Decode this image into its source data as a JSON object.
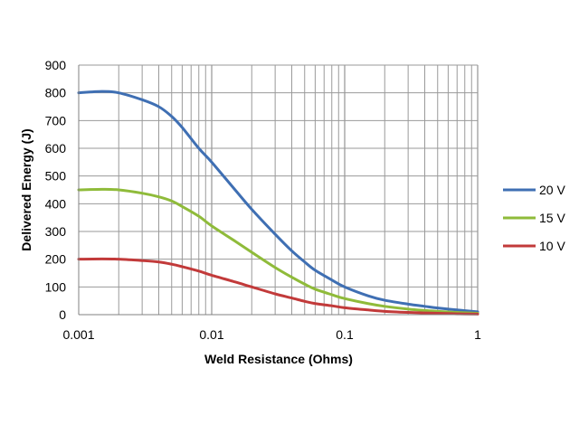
{
  "chart_data": {
    "type": "line",
    "x_scale": "log",
    "xlabel": "Weld Resistance (Ohms)",
    "ylabel": "Delivered Energy (J)",
    "xlim": [
      0.001,
      1
    ],
    "ylim": [
      0,
      900
    ],
    "x_ticks": [
      "0.001",
      "0.01",
      "0.1",
      "1"
    ],
    "x_tick_values": [
      0.001,
      0.01,
      0.1,
      1
    ],
    "y_ticks": [
      "0",
      "100",
      "200",
      "300",
      "400",
      "500",
      "600",
      "700",
      "800",
      "900"
    ],
    "y_tick_values": [
      0,
      100,
      200,
      300,
      400,
      500,
      600,
      700,
      800,
      900
    ],
    "grid": true,
    "legend_position": "right",
    "x": [
      0.001,
      0.0015,
      0.002,
      0.003,
      0.004,
      0.005,
      0.006,
      0.008,
      0.01,
      0.015,
      0.02,
      0.03,
      0.04,
      0.05,
      0.06,
      0.08,
      0.1,
      0.15,
      0.2,
      0.3,
      0.4,
      0.5,
      0.7,
      1
    ],
    "series": [
      {
        "name": "20 V",
        "color": "#3f6fb3",
        "values": [
          800,
          805,
          800,
          775,
          750,
          715,
          675,
          600,
          550,
          450,
          380,
          290,
          230,
          190,
          160,
          125,
          100,
          68,
          52,
          38,
          30,
          24,
          17,
          10
        ]
      },
      {
        "name": "15 V",
        "color": "#8fbb3a",
        "values": [
          450,
          452,
          450,
          438,
          425,
          410,
          390,
          355,
          320,
          265,
          225,
          170,
          135,
          110,
          92,
          72,
          58,
          40,
          30,
          20,
          15,
          12,
          8,
          5
        ]
      },
      {
        "name": "10 V",
        "color": "#c23a3a",
        "values": [
          200,
          201,
          200,
          195,
          190,
          182,
          173,
          157,
          142,
          118,
          100,
          75,
          60,
          48,
          40,
          32,
          25,
          17,
          12,
          8,
          6,
          5,
          3,
          2
        ]
      }
    ]
  }
}
